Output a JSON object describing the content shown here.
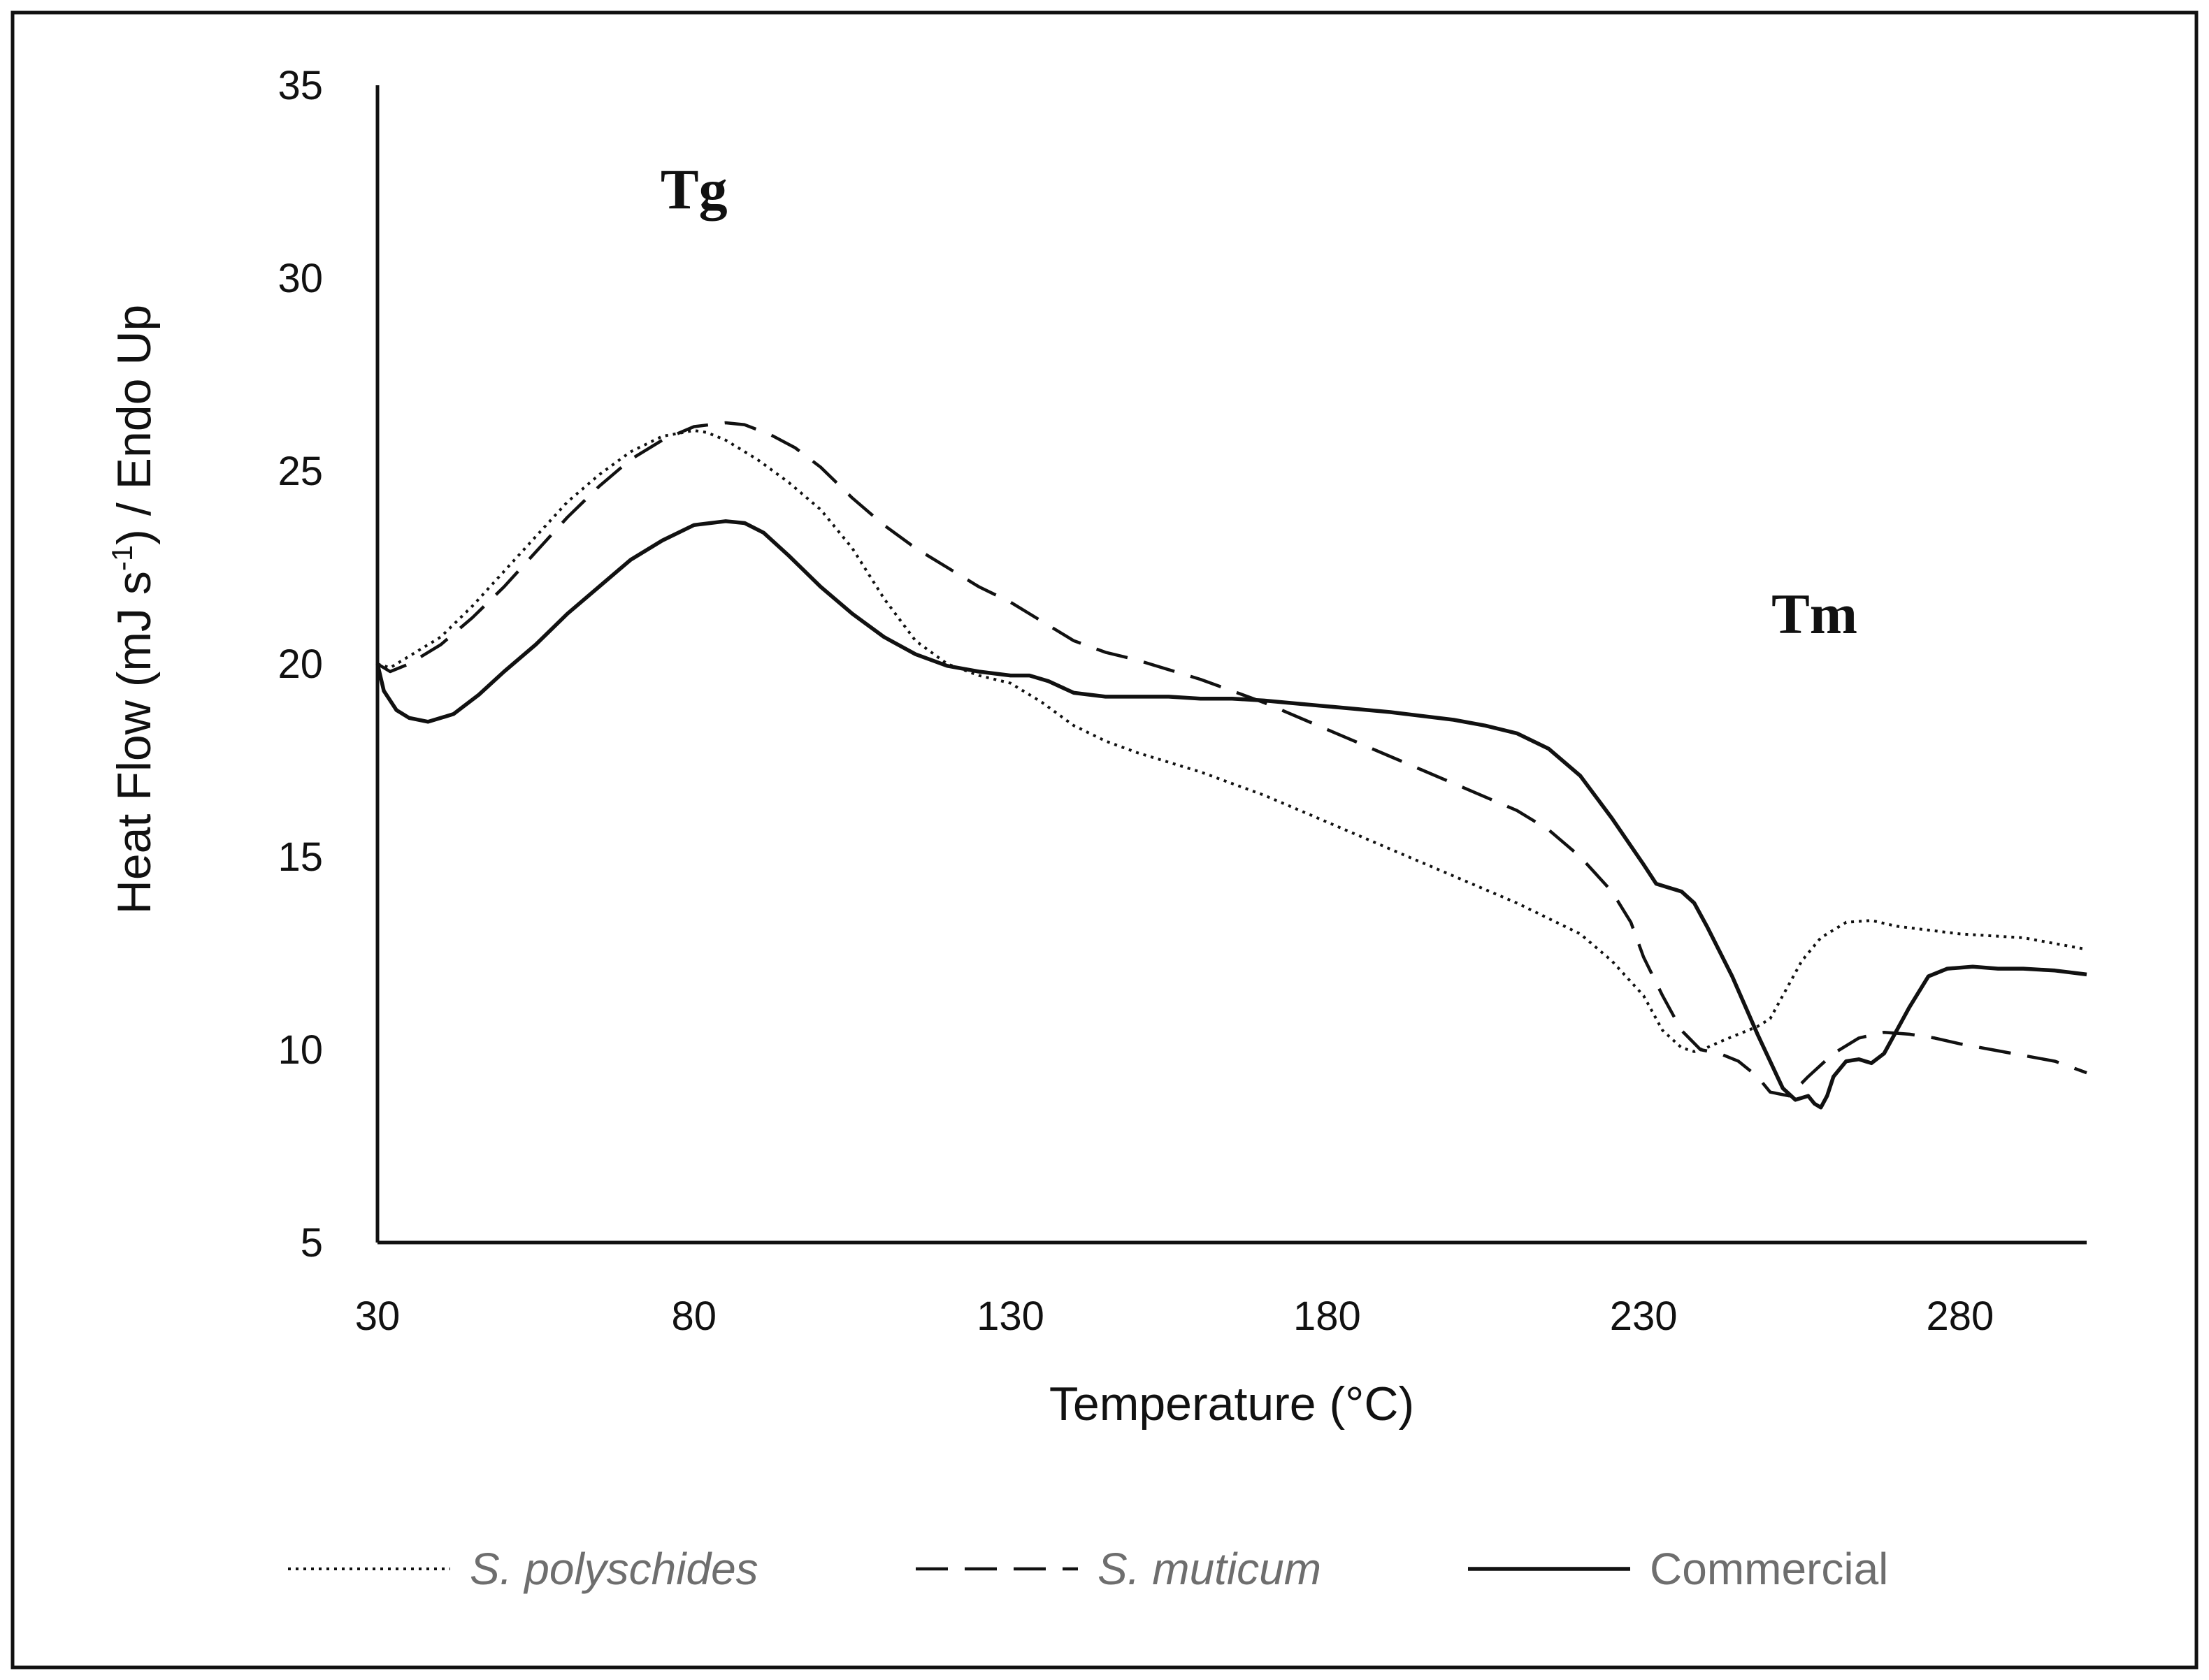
{
  "chart_data": {
    "type": "line",
    "title": "",
    "xlabel": "Temperature (°C)",
    "ylabel_parts": {
      "before": "Heat Flow (mJ s",
      "sup": "-1",
      "after": ") / Endo Up"
    },
    "xlim": [
      30,
      300
    ],
    "ylim": [
      5,
      35
    ],
    "x_ticks": [
      30,
      80,
      130,
      180,
      230,
      280
    ],
    "y_ticks": [
      5,
      10,
      15,
      20,
      25,
      30,
      35
    ],
    "grid": false,
    "legend_position": "bottom",
    "annotations": [
      {
        "text": "Tg",
        "x": 80,
        "y": 31.8
      },
      {
        "text": "Tm",
        "x": 257,
        "y": 20.8
      }
    ],
    "series": [
      {
        "name": "S. polyschides",
        "style": "dotted",
        "italic": true,
        "x": [
          30,
          32,
          35,
          40,
          45,
          50,
          55,
          60,
          65,
          70,
          75,
          80,
          82,
          85,
          90,
          95,
          100,
          105,
          110,
          115,
          120,
          125,
          130,
          135,
          140,
          145,
          150,
          160,
          170,
          180,
          190,
          200,
          210,
          220,
          225,
          230,
          233,
          236,
          238,
          240,
          242,
          245,
          248,
          250,
          252,
          255,
          258,
          262,
          266,
          270,
          275,
          280,
          290,
          300
        ],
        "y": [
          20.0,
          19.9,
          20.2,
          20.7,
          21.5,
          22.4,
          23.3,
          24.2,
          24.9,
          25.5,
          25.9,
          26.05,
          26.0,
          25.8,
          25.3,
          24.7,
          24.0,
          23.0,
          21.7,
          20.6,
          20.0,
          19.7,
          19.5,
          19.0,
          18.4,
          18.0,
          17.7,
          17.2,
          16.6,
          15.9,
          15.2,
          14.5,
          13.8,
          13.0,
          12.3,
          11.4,
          10.5,
          10.05,
          9.95,
          10.05,
          10.2,
          10.4,
          10.6,
          10.8,
          11.4,
          12.3,
          12.9,
          13.3,
          13.35,
          13.2,
          13.1,
          13.0,
          12.9,
          12.6
        ]
      },
      {
        "name": "S. muticum",
        "style": "dashed",
        "italic": true,
        "x": [
          30,
          32,
          35,
          40,
          45,
          50,
          55,
          60,
          65,
          70,
          75,
          80,
          85,
          88,
          92,
          96,
          100,
          105,
          110,
          115,
          120,
          125,
          130,
          135,
          140,
          145,
          150,
          155,
          160,
          170,
          180,
          190,
          200,
          210,
          215,
          220,
          225,
          228,
          230,
          233,
          236,
          239,
          242,
          245,
          248,
          250,
          253,
          256,
          260,
          264,
          268,
          272,
          276,
          280,
          285,
          290,
          295,
          300
        ],
        "y": [
          20.0,
          19.8,
          20.0,
          20.5,
          21.2,
          22.0,
          22.9,
          23.8,
          24.6,
          25.3,
          25.8,
          26.15,
          26.25,
          26.2,
          25.95,
          25.6,
          25.1,
          24.3,
          23.6,
          23.0,
          22.5,
          22.0,
          21.6,
          21.1,
          20.6,
          20.3,
          20.1,
          19.85,
          19.6,
          19.0,
          18.3,
          17.6,
          16.9,
          16.2,
          15.7,
          15.0,
          14.1,
          13.3,
          12.4,
          11.4,
          10.5,
          10.0,
          9.9,
          9.7,
          9.3,
          8.9,
          8.8,
          9.3,
          9.9,
          10.3,
          10.45,
          10.4,
          10.3,
          10.15,
          10.0,
          9.85,
          9.7,
          9.4
        ]
      },
      {
        "name": "Commercial",
        "style": "solid",
        "italic": false,
        "x": [
          30,
          31,
          33,
          35,
          38,
          42,
          46,
          50,
          55,
          60,
          65,
          70,
          75,
          80,
          85,
          88,
          91,
          95,
          100,
          105,
          110,
          115,
          120,
          125,
          130,
          133,
          136,
          140,
          145,
          150,
          155,
          160,
          165,
          170,
          180,
          190,
          200,
          205,
          210,
          215,
          220,
          225,
          230,
          232,
          234,
          236,
          238,
          240,
          244,
          248,
          252,
          254,
          256,
          257,
          258,
          259,
          260,
          262,
          264,
          266,
          268,
          270,
          272,
          275,
          278,
          282,
          286,
          290,
          295,
          300
        ],
        "y": [
          20.0,
          19.3,
          18.8,
          18.6,
          18.5,
          18.7,
          19.2,
          19.8,
          20.5,
          21.3,
          22.0,
          22.7,
          23.2,
          23.6,
          23.7,
          23.65,
          23.4,
          22.8,
          22.0,
          21.3,
          20.7,
          20.25,
          19.95,
          19.8,
          19.7,
          19.7,
          19.55,
          19.25,
          19.15,
          19.15,
          19.15,
          19.1,
          19.1,
          19.05,
          18.9,
          18.75,
          18.55,
          18.4,
          18.2,
          17.8,
          17.1,
          16.0,
          14.8,
          14.3,
          14.2,
          14.1,
          13.8,
          13.2,
          11.9,
          10.4,
          9.0,
          8.7,
          8.8,
          8.6,
          8.5,
          8.8,
          9.3,
          9.7,
          9.75,
          9.65,
          9.9,
          10.5,
          11.1,
          11.9,
          12.1,
          12.15,
          12.1,
          12.1,
          12.05,
          11.95
        ]
      }
    ]
  }
}
